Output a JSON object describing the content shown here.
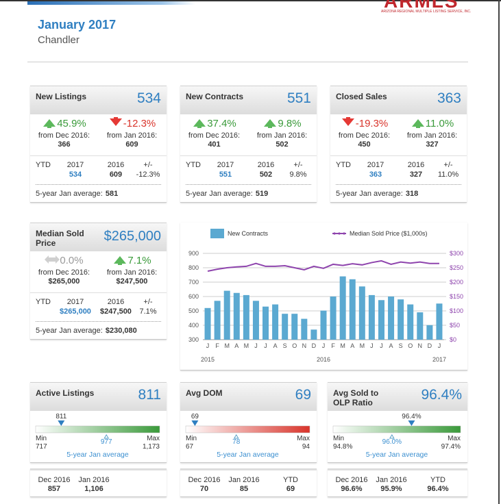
{
  "header": {
    "logo": "ARMLS",
    "logo_subtitle": "ARIZONA REGIONAL MULTIPLE LISTING SERVICE, INC.",
    "title": "January 2017",
    "subtitle": "Chandler"
  },
  "stat_cards": [
    {
      "title": "New Listings",
      "value": "534",
      "changes": [
        {
          "change": "45.9%",
          "direction": "up",
          "from": "from Dec 2016:",
          "base": "366"
        },
        {
          "change": "-12.3%",
          "direction": "down",
          "from": "from Jan 2016:",
          "base": "609"
        }
      ],
      "ytd": {
        "label": "YTD",
        "columns": [
          "2017",
          "2016",
          "+/-"
        ],
        "values": [
          "534",
          "609",
          "-12.3%"
        ]
      },
      "average_label": "5-year Jan average:",
      "average": "581"
    },
    {
      "title": "New Contracts",
      "value": "551",
      "changes": [
        {
          "change": "37.4%",
          "direction": "up",
          "from": "from Dec 2016:",
          "base": "401"
        },
        {
          "change": "9.8%",
          "direction": "up",
          "from": "from Jan 2016:",
          "base": "502"
        }
      ],
      "ytd": {
        "label": "YTD",
        "columns": [
          "2017",
          "2016",
          "+/-"
        ],
        "values": [
          "551",
          "502",
          "9.8%"
        ]
      },
      "average_label": "5-year Jan average:",
      "average": "519"
    },
    {
      "title": "Closed Sales",
      "value": "363",
      "changes": [
        {
          "change": "-19.3%",
          "direction": "down",
          "from": "from Dec 2016:",
          "base": "450"
        },
        {
          "change": "11.0%",
          "direction": "up",
          "from": "from Jan 2016:",
          "base": "327"
        }
      ],
      "ytd": {
        "label": "YTD",
        "columns": [
          "2017",
          "2016",
          "+/-"
        ],
        "values": [
          "363",
          "327",
          "11.0%"
        ]
      },
      "average_label": "5-year Jan average:",
      "average": "318"
    },
    {
      "title": "Median Sold Price",
      "value": "$265,000",
      "changes": [
        {
          "change": "0.0%",
          "direction": "flat",
          "from": "from Dec 2016:",
          "base": "$265,000"
        },
        {
          "change": "7.1%",
          "direction": "up",
          "from": "from Jan 2016:",
          "base": "$247,500"
        }
      ],
      "ytd": {
        "label": "YTD",
        "columns": [
          "2017",
          "2016",
          "+/-"
        ],
        "values": [
          "$265,000",
          "$247,500",
          "7.1%"
        ]
      },
      "average_label": "5-year Jan average:",
      "average": "$230,080"
    }
  ],
  "chart_data": {
    "type": "bar",
    "categories": [
      "J",
      "F",
      "M",
      "A",
      "M",
      "J",
      "J",
      "A",
      "S",
      "O",
      "N",
      "D",
      "J",
      "F",
      "M",
      "A",
      "M",
      "J",
      "J",
      "A",
      "S",
      "O",
      "N",
      "D",
      "J"
    ],
    "year_labels": [
      "2015",
      null,
      null,
      null,
      null,
      null,
      null,
      null,
      null,
      null,
      null,
      null,
      "2016",
      null,
      null,
      null,
      null,
      null,
      null,
      null,
      null,
      null,
      null,
      null,
      "2017"
    ],
    "series": [
      {
        "name": "New Contracts",
        "type": "bar",
        "color": "#5ba9d1",
        "values": [
          520,
          570,
          640,
          625,
          610,
          570,
          530,
          545,
          480,
          480,
          445,
          370,
          502,
          600,
          740,
          720,
          670,
          610,
          575,
          600,
          580,
          545,
          490,
          401,
          551
        ]
      },
      {
        "name": "Median Sold Price ($1,000s)",
        "type": "line",
        "axis": "y2",
        "color": "#8e44ad",
        "values": [
          238,
          245,
          250,
          253,
          255,
          265,
          255,
          255,
          257,
          250,
          243,
          255,
          248,
          262,
          258,
          264,
          260,
          268,
          274,
          262,
          270,
          266,
          270,
          265,
          265
        ]
      }
    ],
    "ylim": [
      300,
      900
    ],
    "yticks": [
      300,
      400,
      500,
      600,
      700,
      800,
      900
    ],
    "y2lim": [
      0,
      300
    ],
    "y2ticks": [
      {
        "value": 0,
        "label": "$0"
      },
      {
        "value": 50,
        "label": "$50"
      },
      {
        "value": 100,
        "label": "$100"
      },
      {
        "value": 150,
        "label": "$150"
      },
      {
        "value": 200,
        "label": "$200"
      },
      {
        "value": 250,
        "label": "$250"
      },
      {
        "value": 300,
        "label": "$300"
      }
    ],
    "grid": true
  },
  "gauge_cards": [
    {
      "title": "Active Listings",
      "value": "811",
      "gauge": {
        "value": {
          "value": 811,
          "label": "811"
        },
        "min": {
          "value": 717,
          "label": "717"
        },
        "max": {
          "value": 1173,
          "label": "1,173"
        },
        "average": {
          "value": 977,
          "label": "977"
        },
        "min_label": "Min",
        "max_label": "Max",
        "average_label": "5-year Jan average",
        "color": "#3a9a3a"
      },
      "footer": [
        {
          "label": "Dec 2016",
          "value": "857"
        },
        {
          "label": "Jan 2016",
          "value": "1,106"
        }
      ]
    },
    {
      "title": "Avg DOM",
      "value": "69",
      "gauge": {
        "value": {
          "value": 69,
          "label": "69"
        },
        "min": {
          "value": 67,
          "label": "67"
        },
        "max": {
          "value": 94,
          "label": "94"
        },
        "average": {
          "value": 78,
          "label": "78"
        },
        "min_label": "Min",
        "max_label": "Max",
        "average_label": "5-year Jan average",
        "color": "#d9342b"
      },
      "footer": [
        {
          "label": "Dec 2016",
          "value": "70"
        },
        {
          "label": "Jan 2016",
          "value": "85"
        },
        {
          "label": "YTD",
          "value": "69"
        }
      ]
    },
    {
      "title": "Avg Sold to OLP Ratio",
      "value": "96.4%",
      "gauge": {
        "value": {
          "value": 96.4,
          "label": "96.4%"
        },
        "min": {
          "value": 94.8,
          "label": "94.8%"
        },
        "max": {
          "value": 97.4,
          "label": "97.4%"
        },
        "average": {
          "value": 96.0,
          "label": "96.0%"
        },
        "min_label": "Min",
        "max_label": "Max",
        "average_label": "5-year Jan average",
        "color": "#3a9a3a"
      },
      "footer": [
        {
          "label": "Dec 2016",
          "value": "96.6%"
        },
        {
          "label": "Jan 2016",
          "value": "95.9%"
        },
        {
          "label": "YTD",
          "value": "96.4%"
        }
      ]
    }
  ]
}
